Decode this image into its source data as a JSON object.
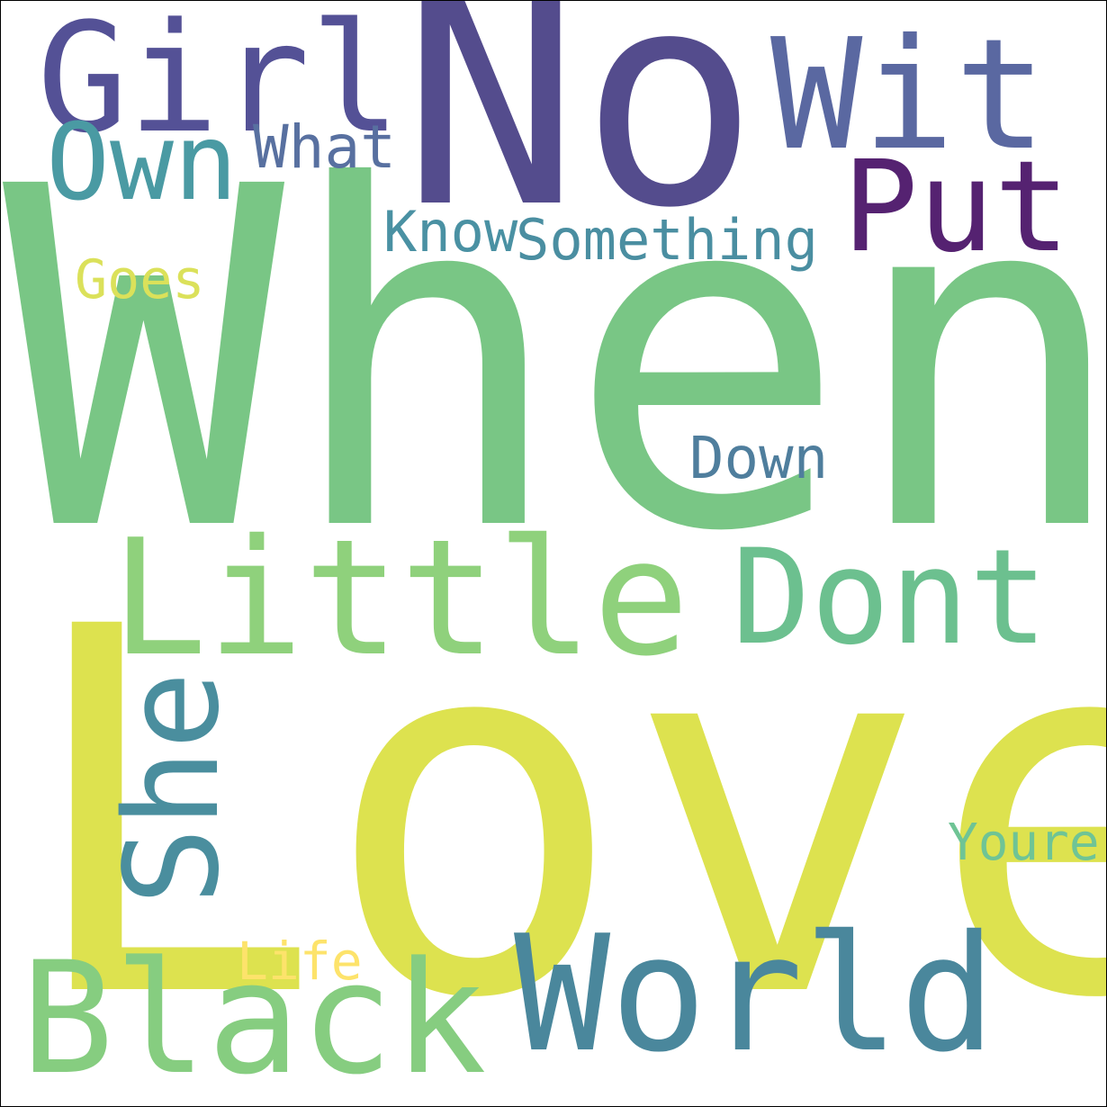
{
  "words": [
    {
      "key": "when",
      "text": "When",
      "color": "#79c685"
    },
    {
      "key": "love",
      "text": "Love",
      "color": "#dde24f"
    },
    {
      "key": "no",
      "text": "No",
      "color": "#544c8d"
    },
    {
      "key": "girl",
      "text": "Girl",
      "color": "#545196"
    },
    {
      "key": "wit",
      "text": "Wit",
      "color": "#5a68a1"
    },
    {
      "key": "put",
      "text": "Put",
      "color": "#552271"
    },
    {
      "key": "own",
      "text": "Own",
      "color": "#4a9aa3"
    },
    {
      "key": "what",
      "text": "What",
      "color": "#5870a0"
    },
    {
      "key": "know",
      "text": "Know",
      "color": "#4a91a3"
    },
    {
      "key": "something",
      "text": "Something",
      "color": "#4a8ea1"
    },
    {
      "key": "goes",
      "text": "Goes",
      "color": "#dbe15a"
    },
    {
      "key": "down",
      "text": "Down",
      "color": "#4f7e9d"
    },
    {
      "key": "little",
      "text": "Little",
      "color": "#8fd17c"
    },
    {
      "key": "dont",
      "text": "Dont",
      "color": "#6cc08f"
    },
    {
      "key": "she",
      "text": "She",
      "color": "#4a8e9e"
    },
    {
      "key": "youre",
      "text": "Youre",
      "color": "#6fc495"
    },
    {
      "key": "life",
      "text": "Life",
      "color": "#fde36b"
    },
    {
      "key": "black",
      "text": "Black",
      "color": "#86cd80"
    },
    {
      "key": "world",
      "text": "World",
      "color": "#4a879c"
    }
  ]
}
